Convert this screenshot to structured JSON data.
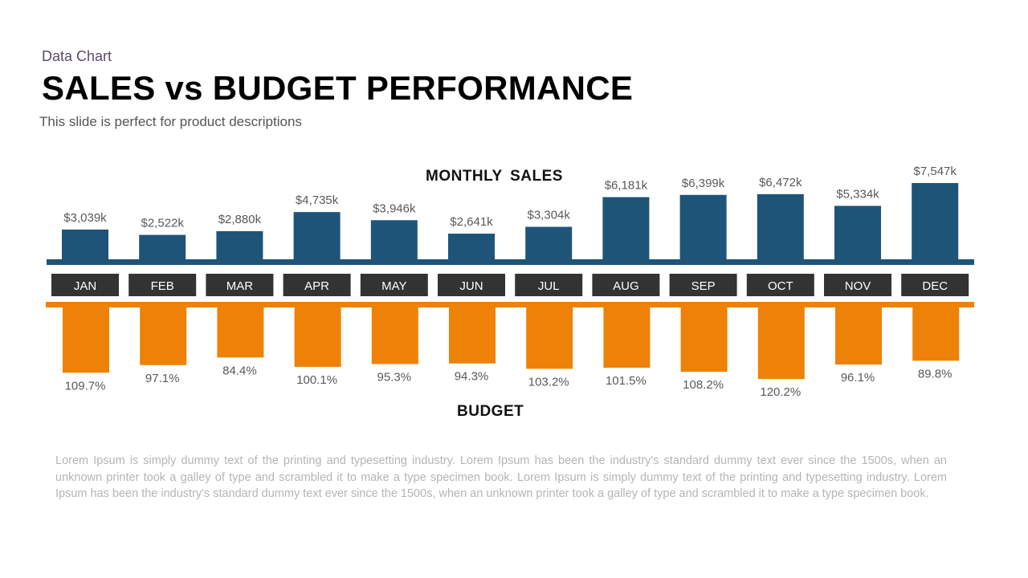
{
  "header": {
    "kicker": "Data Chart",
    "title": "SALES vs BUDGET PERFORMANCE",
    "subtitle": "This slide is perfect for product descriptions"
  },
  "chart_data": {
    "type": "bar",
    "categories": [
      "JAN",
      "FEB",
      "MAR",
      "APR",
      "MAY",
      "JUN",
      "JUL",
      "AUG",
      "SEP",
      "OCT",
      "NOV",
      "DEC"
    ],
    "series": [
      {
        "name": "MONTHLY  SALES",
        "values": [
          3039,
          2522,
          2880,
          4735,
          3946,
          2641,
          3304,
          6181,
          6399,
          6472,
          5334,
          7547
        ],
        "labels": [
          "$3,039k",
          "$2,522k",
          "$2,880k",
          "$4,735k",
          "$3,946k",
          "$2,641k",
          "$3,304k",
          "$6,181k",
          "$6,399k",
          "$6,472k",
          "$5,334k",
          "$7,547k"
        ],
        "color": "#1f5479",
        "direction": "up"
      },
      {
        "name": "BUDGET",
        "values": [
          109.7,
          97.1,
          84.4,
          100.1,
          95.3,
          94.3,
          103.2,
          101.5,
          108.2,
          120.2,
          96.1,
          89.8
        ],
        "labels": [
          "109.7%",
          "97.1%",
          "84.4%",
          "100.1%",
          "95.3%",
          "94.3%",
          "103.2%",
          "101.5%",
          "108.2%",
          "120.2%",
          "96.1%",
          "89.8%"
        ],
        "color": "#ee8208",
        "direction": "down"
      }
    ],
    "category_box_color": "#333333",
    "grid": false,
    "legend": "none"
  },
  "footer": {
    "text": "Lorem Ipsum is simply dummy text of the printing and typesetting industry. Lorem Ipsum has been the industry's standard dummy text ever since the 1500s, when an unknown printer took a galley of type and scrambled it to make a type specimen book. Lorem Ipsum is simply dummy text of the printing and typesetting industry. Lorem Ipsum has been the industry's standard dummy text ever since the 1500s, when an unknown printer took a galley of type and scrambled it to make a type specimen book."
  }
}
